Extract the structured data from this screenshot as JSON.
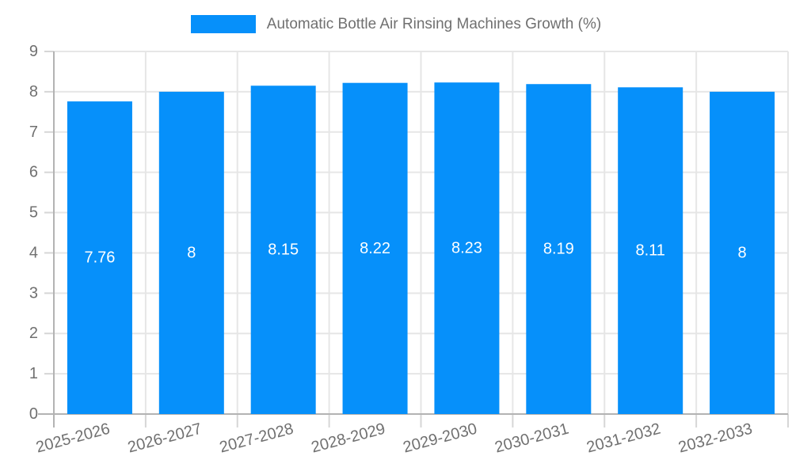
{
  "chart_data": {
    "type": "bar",
    "title": "Automatic Bottle Air Rinsing Machines Growth (%)",
    "categories": [
      "2025-2026",
      "2026-2027",
      "2027-2028",
      "2028-2029",
      "2029-2030",
      "2030-2031",
      "2031-2032",
      "2032-2033"
    ],
    "values": [
      7.76,
      8,
      8.15,
      8.22,
      8.23,
      8.19,
      8.11,
      8
    ],
    "xlabel": "",
    "ylabel": "",
    "ylim": [
      0,
      9
    ],
    "y_ticks": [
      0,
      1,
      2,
      3,
      4,
      5,
      6,
      7,
      8,
      9
    ],
    "grid": true,
    "legend_position": "top",
    "colors": {
      "bar": "#0690fa",
      "value_label": "#ffffff",
      "axis_label": "#707070",
      "gridline": "#e6e6e6",
      "tick": "#d6d6d6",
      "axis_line": "#b3b3b3",
      "background": "#ffffff"
    }
  }
}
